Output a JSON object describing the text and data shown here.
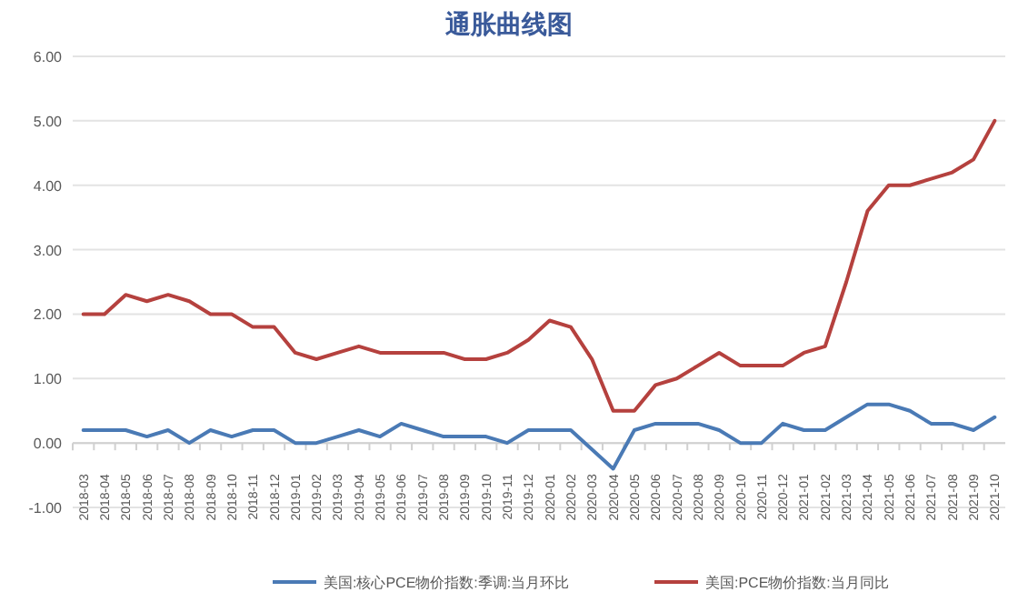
{
  "chart_data": {
    "type": "line",
    "title": "通胀曲线图",
    "categories": [
      "2018-03",
      "2018-04",
      "2018-05",
      "2018-06",
      "2018-07",
      "2018-08",
      "2018-09",
      "2018-10",
      "2018-11",
      "2018-12",
      "2019-01",
      "2019-02",
      "2019-03",
      "2019-04",
      "2019-05",
      "2019-06",
      "2019-07",
      "2019-08",
      "2019-09",
      "2019-10",
      "2019-11",
      "2019-12",
      "2020-01",
      "2020-02",
      "2020-03",
      "2020-04",
      "2020-05",
      "2020-06",
      "2020-07",
      "2020-08",
      "2020-09",
      "2020-10",
      "2020-11",
      "2020-12",
      "2021-01",
      "2021-02",
      "2021-03",
      "2021-04",
      "2021-05",
      "2021-06",
      "2021-07",
      "2021-08",
      "2021-09",
      "2021-10"
    ],
    "series": [
      {
        "name": "美国:核心PCE物价指数:季调:当月环比",
        "color": "#4a7ab5",
        "values": [
          0.2,
          0.2,
          0.2,
          0.1,
          0.2,
          0.0,
          0.2,
          0.1,
          0.2,
          0.2,
          0.0,
          0.0,
          0.1,
          0.2,
          0.1,
          0.3,
          0.2,
          0.1,
          0.1,
          0.1,
          0.0,
          0.2,
          0.2,
          0.2,
          -0.1,
          -0.4,
          0.2,
          0.3,
          0.3,
          0.3,
          0.2,
          0.0,
          0.0,
          0.3,
          0.2,
          0.2,
          0.4,
          0.6,
          0.6,
          0.5,
          0.3,
          0.3,
          0.2,
          0.4
        ]
      },
      {
        "name": "美国:PCE物价指数:当月同比",
        "color": "#b5413e",
        "values": [
          2.0,
          2.0,
          2.3,
          2.2,
          2.3,
          2.2,
          2.0,
          2.0,
          1.8,
          1.8,
          1.4,
          1.3,
          1.4,
          1.5,
          1.4,
          1.4,
          1.4,
          1.4,
          1.3,
          1.3,
          1.4,
          1.6,
          1.9,
          1.8,
          1.3,
          0.5,
          0.5,
          0.9,
          1.0,
          1.2,
          1.4,
          1.2,
          1.2,
          1.2,
          1.4,
          1.5,
          2.5,
          3.6,
          4.0,
          4.0,
          4.1,
          4.2,
          4.4,
          5.0
        ]
      }
    ],
    "ylim": [
      -1,
      6
    ],
    "yticks": [
      {
        "value": -1,
        "label": "-1.00"
      },
      {
        "value": 0,
        "label": "0.00"
      },
      {
        "value": 1,
        "label": "1.00"
      },
      {
        "value": 2,
        "label": "2.00"
      },
      {
        "value": 3,
        "label": "3.00"
      },
      {
        "value": 4,
        "label": "4.00"
      },
      {
        "value": 5,
        "label": "5.00"
      },
      {
        "value": 6,
        "label": "6.00"
      }
    ],
    "grid": "y",
    "legend": "bottom",
    "marker": "none",
    "line_style": "solid"
  }
}
